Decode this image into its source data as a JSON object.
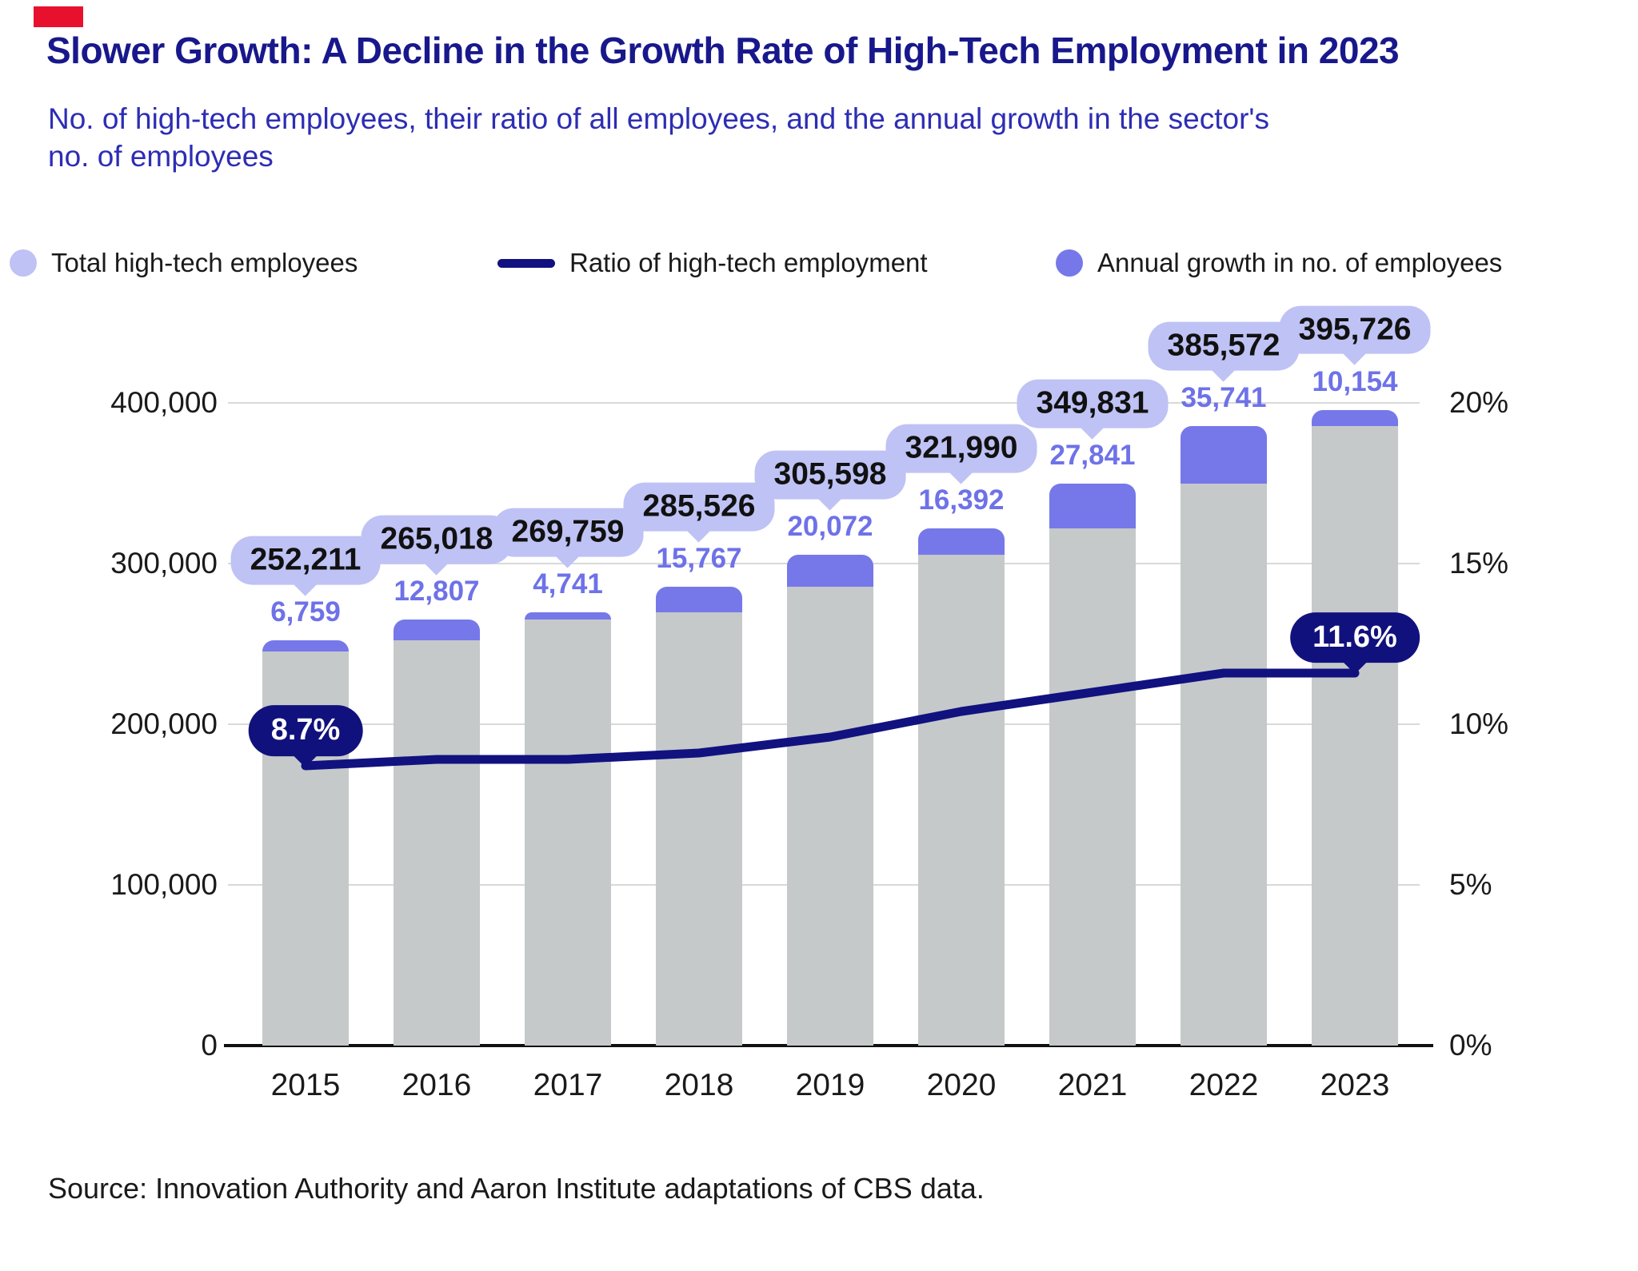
{
  "brand": {
    "accent_color": "#e8112d"
  },
  "header": {
    "title": "Slower Growth: A Decline in the Growth Rate of High-Tech Employment in 2023",
    "subtitle": "No. of high-tech employees, their ratio of all employees, and the annual growth in the sector's no. of employees"
  },
  "legend": {
    "items": [
      {
        "label": "Total high-tech employees",
        "swatch": "circle",
        "color": "#bfc2f4"
      },
      {
        "label": "Ratio of high-tech employment",
        "swatch": "line",
        "color": "#11127f"
      },
      {
        "label": "Annual growth in no. of employees",
        "swatch": "circle",
        "color": "#7678e9"
      }
    ]
  },
  "chart_data": {
    "type": "combo: stacked bar + line",
    "categories": [
      "2015",
      "2016",
      "2017",
      "2018",
      "2019",
      "2020",
      "2021",
      "2022",
      "2023"
    ],
    "series": [
      {
        "name": "Total high-tech employees",
        "values": [
          252211,
          265018,
          269759,
          285526,
          305598,
          321990,
          349831,
          385572,
          395726
        ],
        "labels": [
          "252,211",
          "265,018",
          "269,759",
          "285,526",
          "305,598",
          "321,990",
          "349,831",
          "385,572",
          "395,726"
        ]
      },
      {
        "name": "Annual growth in no. of employees",
        "values": [
          6759,
          12807,
          4741,
          15767,
          20072,
          16392,
          27841,
          35741,
          10154
        ],
        "labels": [
          "6,759",
          "12,807",
          "4,741",
          "15,767",
          "20,072",
          "16,392",
          "27,841",
          "35,741",
          "10,154"
        ]
      },
      {
        "name": "Ratio of high-tech employment (%), estimated from line; only first and last labeled",
        "values": [
          8.7,
          8.9,
          8.9,
          9.1,
          9.6,
          10.4,
          11.0,
          11.6,
          11.6
        ],
        "labeled_points": {
          "first": "8.7%",
          "last": "11.6%"
        }
      }
    ],
    "left_axis": {
      "ticks": [
        "400,000",
        "300,000",
        "200,000",
        "100,000",
        "0"
      ],
      "range": [
        0,
        400000
      ]
    },
    "right_axis": {
      "ticks": [
        "20%",
        "15%",
        "10%",
        "5%",
        "0%"
      ],
      "range": [
        0,
        20
      ]
    },
    "grid": true,
    "legend_position": "top",
    "colors": {
      "bar_total_gray": "#c5c9ca",
      "bar_growth_purple": "#7678e9",
      "total_bubble_lavender": "#bfc2f4",
      "growth_text_purple": "#6e72e8",
      "ratio_line_navy": "#11127f",
      "ratio_bubble_navy": "#11117d",
      "gridline": "#d9d9d9",
      "axis": "#111111",
      "text": "#1a1a1a",
      "title": "#18188c",
      "subtitle": "#2d2db4"
    }
  },
  "source": "Source: Innovation Authority and Aaron Institute adaptations of CBS data."
}
